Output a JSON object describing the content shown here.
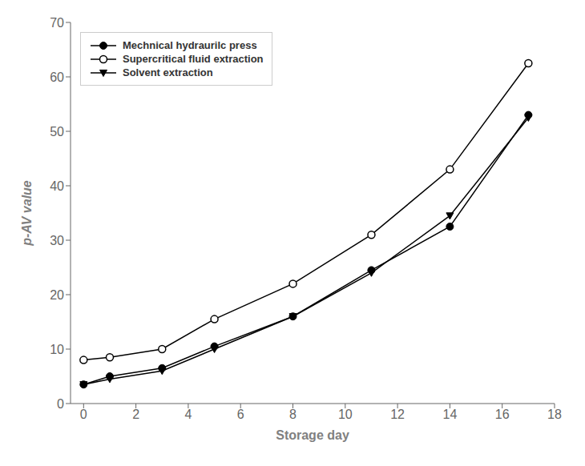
{
  "chart_data": {
    "type": "line",
    "x": [
      0,
      1,
      3,
      5,
      8,
      11,
      14,
      17
    ],
    "series": [
      {
        "name": "Mechnical hydraurilc press",
        "color": "#000000",
        "marker": "circle",
        "values": [
          3.5,
          5.0,
          6.5,
          10.5,
          16.0,
          24.5,
          32.5,
          53.0
        ]
      },
      {
        "name": "Supercritical fluid extraction",
        "color": "#000000",
        "marker": "open_circle",
        "values": [
          8.0,
          8.5,
          10.0,
          15.5,
          22.0,
          31.0,
          43.0,
          62.5
        ]
      },
      {
        "name": "Solvent extraction",
        "color": "#000000",
        "marker": "triangle_down",
        "values": [
          3.5,
          4.5,
          6.0,
          10.0,
          16.0,
          24.0,
          34.5,
          52.5
        ]
      }
    ],
    "xlabel": "Storage day",
    "ylabel": "p-AV value",
    "xlim": [
      -0.5,
      18
    ],
    "xticks": [
      0,
      2,
      4,
      6,
      8,
      10,
      12,
      14,
      16,
      18
    ],
    "ylim": [
      0,
      70
    ],
    "yticks": [
      0,
      10,
      20,
      30,
      40,
      50,
      60,
      70
    ],
    "grid": false,
    "legend": "upper left"
  }
}
